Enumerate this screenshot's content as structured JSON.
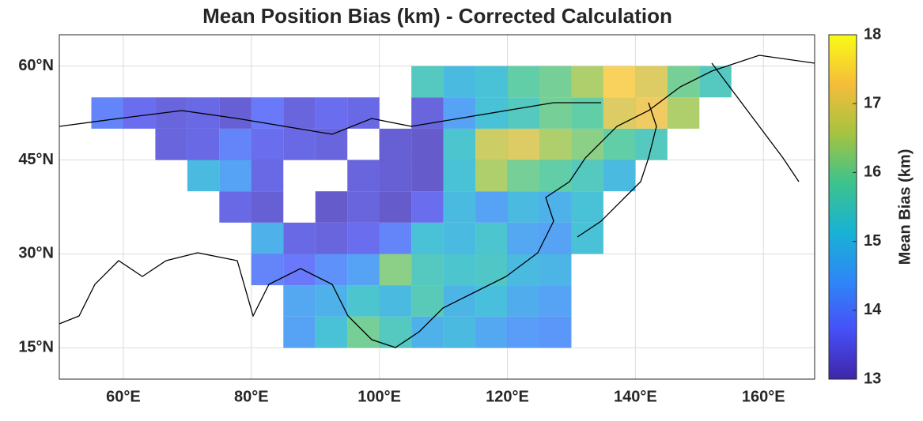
{
  "chart_data": {
    "type": "heatmap",
    "title": "Mean Position Bias (km) - Corrected Calculation",
    "colorbar_label": "Mean Bias (km)",
    "xlim": [
      50,
      168
    ],
    "ylim": [
      10,
      65
    ],
    "xticks": [
      {
        "value": 60,
        "label": "60°E"
      },
      {
        "value": 80,
        "label": "80°E"
      },
      {
        "value": 100,
        "label": "100°E"
      },
      {
        "value": 120,
        "label": "120°E"
      },
      {
        "value": 140,
        "label": "140°E"
      },
      {
        "value": 160,
        "label": "160°E"
      }
    ],
    "yticks": [
      {
        "value": 15,
        "label": "15°N"
      },
      {
        "value": 30,
        "label": "30°N"
      },
      {
        "value": 45,
        "label": "45°N"
      },
      {
        "value": 60,
        "label": "60°N"
      }
    ],
    "grid": true,
    "clim": [
      13,
      18
    ],
    "cticks": [
      13,
      14,
      15,
      16,
      17,
      18
    ],
    "colormap": [
      "#3e26a8",
      "#4650f7",
      "#2e87f7",
      "#19b2d3",
      "#3dc38c",
      "#a6c340",
      "#f5bd3a",
      "#f9fb15"
    ],
    "x": [
      57.5,
      62.5,
      67.5,
      72.5,
      77.5,
      82.5,
      87.5,
      92.5,
      97.5,
      102.5,
      107.5,
      112.5,
      117.5,
      122.5,
      127.5,
      132.5,
      137.5,
      142.5,
      147.5,
      152.5
    ],
    "y": [
      17.5,
      22.5,
      27.5,
      32.5,
      37.5,
      42.5,
      47.5,
      52.5,
      57.5
    ],
    "z": [
      [
        null,
        null,
        null,
        null,
        null,
        null,
        14.5,
        15.2,
        16.0,
        15.5,
        14.8,
        15.0,
        14.6,
        14.4,
        14.3,
        null,
        null,
        null,
        null,
        null
      ],
      [
        null,
        null,
        null,
        null,
        null,
        null,
        14.6,
        14.8,
        15.3,
        15.0,
        15.6,
        14.9,
        15.1,
        14.7,
        14.5,
        null,
        null,
        null,
        null,
        null
      ],
      [
        null,
        null,
        null,
        null,
        null,
        14.0,
        13.8,
        14.2,
        14.5,
        16.2,
        15.5,
        15.3,
        15.4,
        15.0,
        14.9,
        null,
        null,
        null,
        null,
        null
      ],
      [
        null,
        null,
        null,
        null,
        null,
        14.8,
        13.5,
        13.4,
        13.6,
        14.0,
        15.2,
        15.0,
        15.3,
        14.6,
        14.5,
        15.2,
        null,
        null,
        null,
        null
      ],
      [
        null,
        null,
        null,
        null,
        13.5,
        13.3,
        null,
        13.2,
        13.4,
        13.2,
        13.6,
        15.0,
        14.5,
        15.0,
        14.8,
        15.2,
        null,
        null,
        null,
        null
      ],
      [
        null,
        null,
        null,
        15.0,
        14.5,
        13.5,
        null,
        null,
        13.4,
        13.3,
        13.2,
        15.2,
        16.5,
        16.0,
        15.8,
        15.5,
        15.0,
        null,
        null,
        null
      ],
      [
        null,
        null,
        13.4,
        13.5,
        14.0,
        13.6,
        13.5,
        13.4,
        null,
        13.3,
        13.2,
        15.3,
        16.8,
        17.0,
        16.5,
        16.2,
        15.8,
        15.5,
        null,
        null
      ],
      [
        14.0,
        13.6,
        13.4,
        13.5,
        13.3,
        13.8,
        13.4,
        13.6,
        13.5,
        null,
        13.4,
        14.5,
        15.2,
        15.5,
        16.0,
        15.8,
        17.0,
        17.2,
        16.5,
        null
      ],
      [
        null,
        null,
        null,
        null,
        null,
        null,
        null,
        null,
        null,
        null,
        15.5,
        15.0,
        15.2,
        15.8,
        16.0,
        16.5,
        17.4,
        17.0,
        16.0,
        15.5
      ]
    ]
  }
}
